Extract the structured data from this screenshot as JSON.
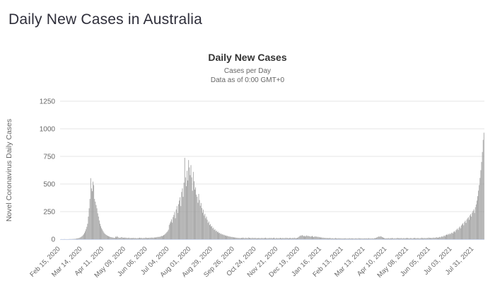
{
  "page": {
    "title": "Daily New Cases in Australia"
  },
  "chart_data": {
    "type": "bar",
    "title": "Daily New Cases",
    "subtitle1": "Cases per Day",
    "subtitle2": "Data as of 0:00 GMT+0",
    "ylabel": "Novel Coronavirus Daily Cases",
    "xlabel": "",
    "ylim": [
      0,
      1250
    ],
    "yticks": [
      0,
      250,
      500,
      750,
      1000,
      1250
    ],
    "grid": true,
    "legend_position": "none",
    "bar_color": "#9a9a9a",
    "grid_color": "#e6e6e6",
    "axis_line_color": "#ccd6eb",
    "label_color": "#666666",
    "start_date": "Feb 15, 2020",
    "end_date": "Aug 13, 2021",
    "tick_interval_days": 28,
    "xticklabels": [
      "Feb 15, 2020",
      "Mar 14, 2020",
      "Apr 11, 2020",
      "May 09, 2020",
      "Jun 06, 2020",
      "Jul 04, 2020",
      "Aug 01, 2020",
      "Aug 29, 2020",
      "Sep 26, 2020",
      "Oct 24, 2020",
      "Nov 21, 2020",
      "Dec 19, 2020",
      "Jan 16, 2021",
      "Feb 13, 2021",
      "Mar 13, 2021",
      "Apr 10, 2021",
      "May 08, 2021",
      "Jun 05, 2021",
      "Jul 03, 2021",
      "Jul 31, 2021"
    ],
    "values": [
      0,
      0,
      1,
      0,
      0,
      2,
      0,
      1,
      0,
      0,
      1,
      0,
      2,
      1,
      2,
      1,
      3,
      2,
      4,
      3,
      5,
      6,
      7,
      9,
      11,
      14,
      18,
      23,
      29,
      36,
      45,
      57,
      72,
      90,
      112,
      140,
      205,
      280,
      365,
      553,
      460,
      435,
      522,
      490,
      365,
      340,
      310,
      280,
      235,
      205,
      170,
      140,
      118,
      100,
      88,
      74,
      61,
      51,
      44,
      39,
      34,
      30,
      27,
      24,
      21,
      19,
      17,
      16,
      14,
      13,
      12,
      24,
      18,
      28,
      20,
      15,
      13,
      13,
      17,
      20,
      14,
      12,
      16,
      11,
      15,
      13,
      10,
      12,
      14,
      11,
      9,
      12,
      8,
      11,
      13,
      9,
      12,
      10,
      8,
      11,
      9,
      12,
      14,
      10,
      13,
      11,
      9,
      12,
      10,
      13,
      15,
      12,
      10,
      13,
      11,
      14,
      12,
      16,
      13,
      15,
      12,
      17,
      14,
      18,
      16,
      21,
      19,
      23,
      20,
      26,
      30,
      27,
      33,
      37,
      41,
      48,
      55,
      64,
      73,
      86,
      130,
      145,
      160,
      180,
      150,
      200,
      220,
      245,
      190,
      270,
      300,
      238,
      317,
      350,
      380,
      300,
      428,
      460,
      384,
      512,
      737,
      560,
      480,
      620,
      532,
      717,
      650,
      580,
      671,
      560,
      439,
      610,
      525,
      450,
      470,
      404,
      385,
      330,
      410,
      355,
      303,
      328,
      282,
      240,
      268,
      215,
      230,
      190,
      205,
      176,
      148,
      160,
      128,
      138,
      115,
      120,
      98,
      105,
      84,
      90,
      73,
      78,
      64,
      68,
      55,
      59,
      48,
      51,
      42,
      45,
      37,
      40,
      32,
      35,
      28,
      31,
      25,
      27,
      22,
      24,
      19,
      21,
      17,
      18,
      15,
      16,
      13,
      14,
      11,
      12,
      10,
      11,
      9,
      13,
      10,
      15,
      12,
      8,
      14,
      10,
      12,
      9,
      16,
      11,
      13,
      8,
      10,
      14,
      9,
      12,
      10,
      13,
      7,
      10,
      8,
      12,
      9,
      11,
      7,
      13,
      10,
      8,
      12,
      9,
      14,
      10,
      7,
      11,
      8,
      13,
      9,
      12,
      10,
      8,
      11,
      14,
      9,
      7,
      12,
      10,
      8,
      11,
      9,
      13,
      10,
      7,
      12,
      9,
      11,
      8,
      14,
      10,
      12,
      9,
      7,
      11,
      13,
      8,
      10,
      12,
      9,
      14,
      11,
      8,
      10,
      13,
      16,
      22,
      28,
      34,
      30,
      38,
      33,
      26,
      31,
      24,
      29,
      35,
      27,
      32,
      25,
      28,
      22,
      26,
      30,
      24,
      19,
      23,
      27,
      21,
      25,
      18,
      22,
      16,
      20,
      14,
      17,
      12,
      15,
      11,
      13,
      10,
      12,
      9,
      11,
      8,
      10,
      12,
      9,
      7,
      10,
      8,
      6,
      9,
      11,
      7,
      8,
      6,
      10,
      7,
      9,
      6,
      8,
      7,
      5,
      8,
      6,
      9,
      7,
      5,
      8,
      6,
      10,
      7,
      5,
      9,
      6,
      8,
      5,
      7,
      9,
      6,
      8,
      5,
      10,
      7,
      6,
      9,
      5,
      8,
      6,
      7,
      9,
      6,
      8,
      5,
      7,
      10,
      6,
      8,
      5,
      9,
      7,
      6,
      10,
      8,
      12,
      15,
      18,
      22,
      26,
      21,
      28,
      24,
      19,
      16,
      13,
      10,
      8,
      7,
      9,
      7,
      11,
      8,
      6,
      10,
      7,
      12,
      9,
      6,
      10,
      5,
      11,
      8,
      13,
      9,
      7,
      10,
      8,
      12,
      6,
      9,
      11,
      7,
      10,
      8,
      13,
      9,
      10,
      7,
      9,
      12,
      8,
      6,
      11,
      9,
      13,
      7,
      10,
      8,
      12,
      9,
      6,
      11,
      8,
      14,
      10,
      7,
      12,
      9,
      11,
      8,
      13,
      10,
      15,
      12,
      10,
      13,
      9,
      12,
      15,
      11,
      14,
      14,
      18,
      15,
      12,
      17,
      21,
      16,
      22,
      27,
      21,
      29,
      34,
      26,
      38,
      43,
      38,
      48,
      42,
      52,
      46,
      56,
      60,
      52,
      66,
      74,
      63,
      80,
      88,
      97,
      84,
      105,
      115,
      99,
      124,
      135,
      145,
      126,
      155,
      168,
      148,
      178,
      190,
      200,
      176,
      215,
      228,
      205,
      240,
      256,
      270,
      238,
      290,
      315,
      350,
      390,
      440,
      490,
      555,
      625,
      700,
      790,
      900,
      965
    ]
  }
}
